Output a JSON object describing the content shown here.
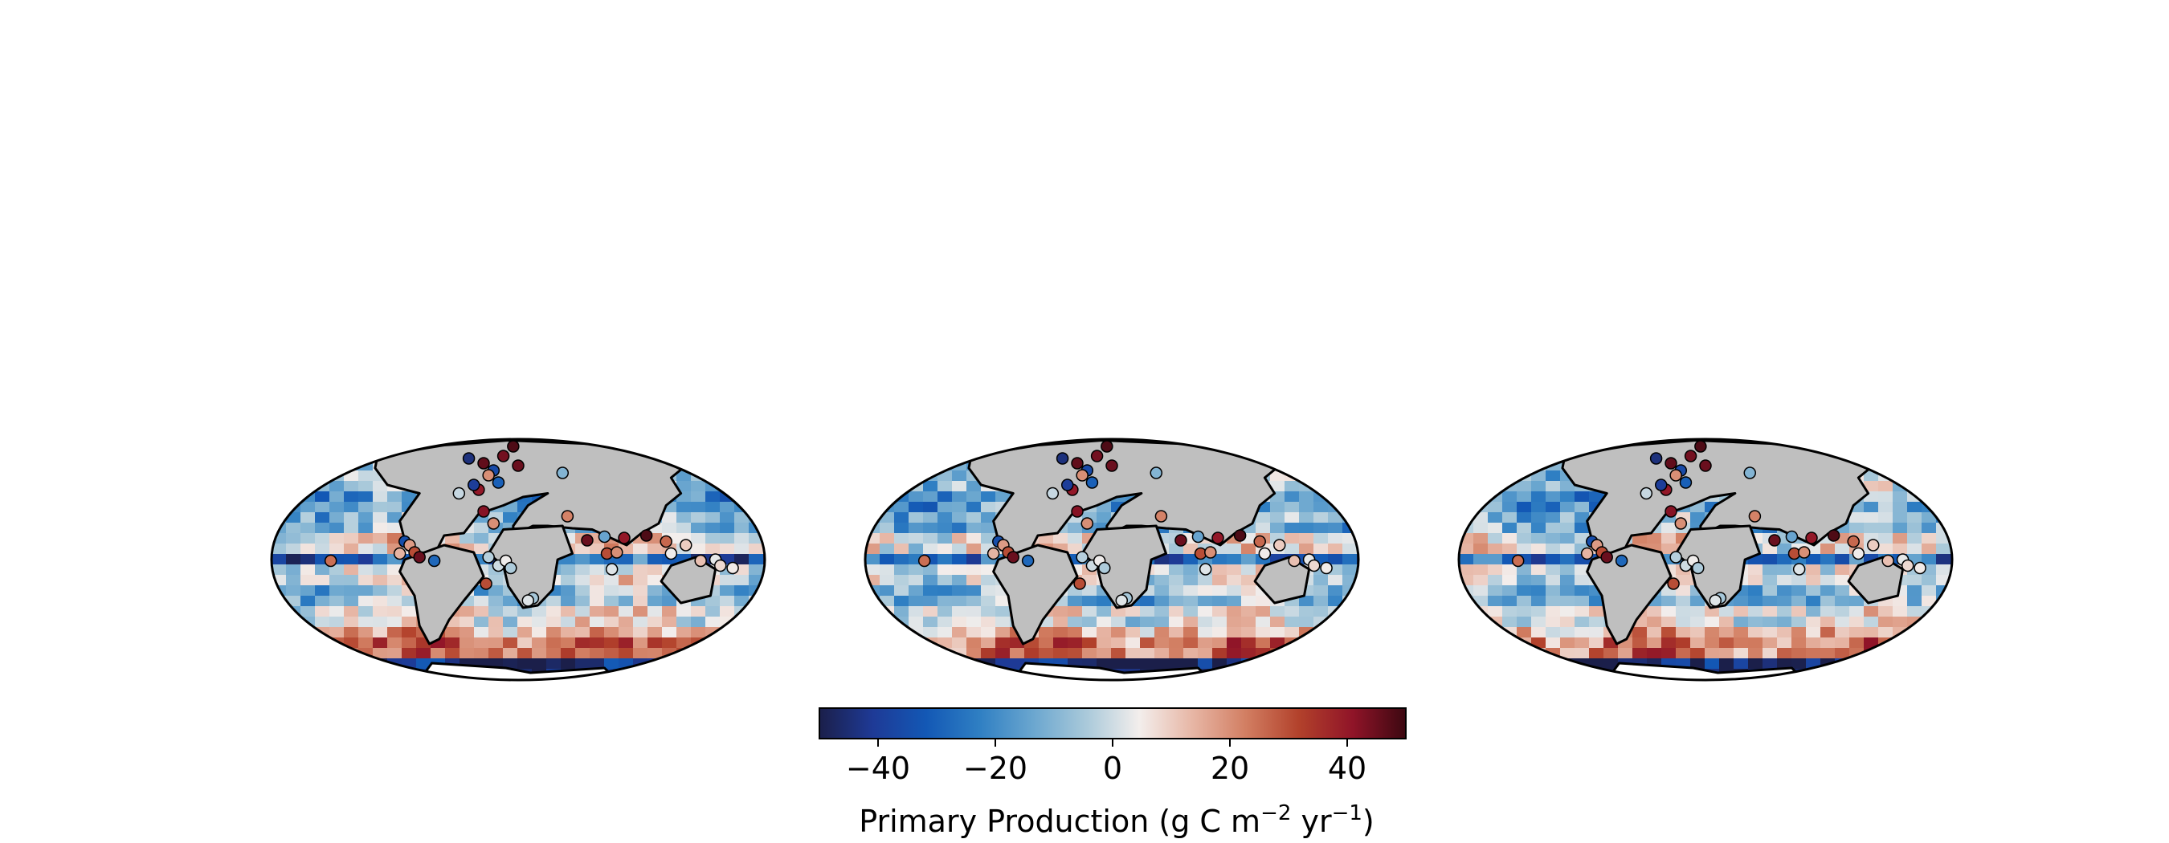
{
  "colorbar": {
    "label_main": "Primary Production (g C m",
    "label_exp1": "−2",
    "label_mid": " yr",
    "label_exp2": "−1",
    "label_end": ")",
    "ticks": [
      {
        "value": -40,
        "label": "−40"
      },
      {
        "value": -20,
        "label": "−20"
      },
      {
        "value": 0,
        "label": "0"
      },
      {
        "value": 20,
        "label": "20"
      },
      {
        "value": 40,
        "label": "40"
      }
    ],
    "vmin": -50,
    "vmax": 50,
    "colormap": [
      "#1b1f4a",
      "#1e3a96",
      "#1358b5",
      "#2f7fc3",
      "#6aa6cf",
      "#a9c9da",
      "#f3eeec",
      "#e7b6a5",
      "#d27e62",
      "#b2412b",
      "#901428",
      "#3c0811"
    ]
  },
  "colors": {
    "land": "#bfbfbf",
    "coastline": "#000000",
    "ice": "#ffffff"
  },
  "maps": [
    {
      "name": "map-left"
    },
    {
      "name": "map-center"
    },
    {
      "name": "map-right"
    }
  ]
}
